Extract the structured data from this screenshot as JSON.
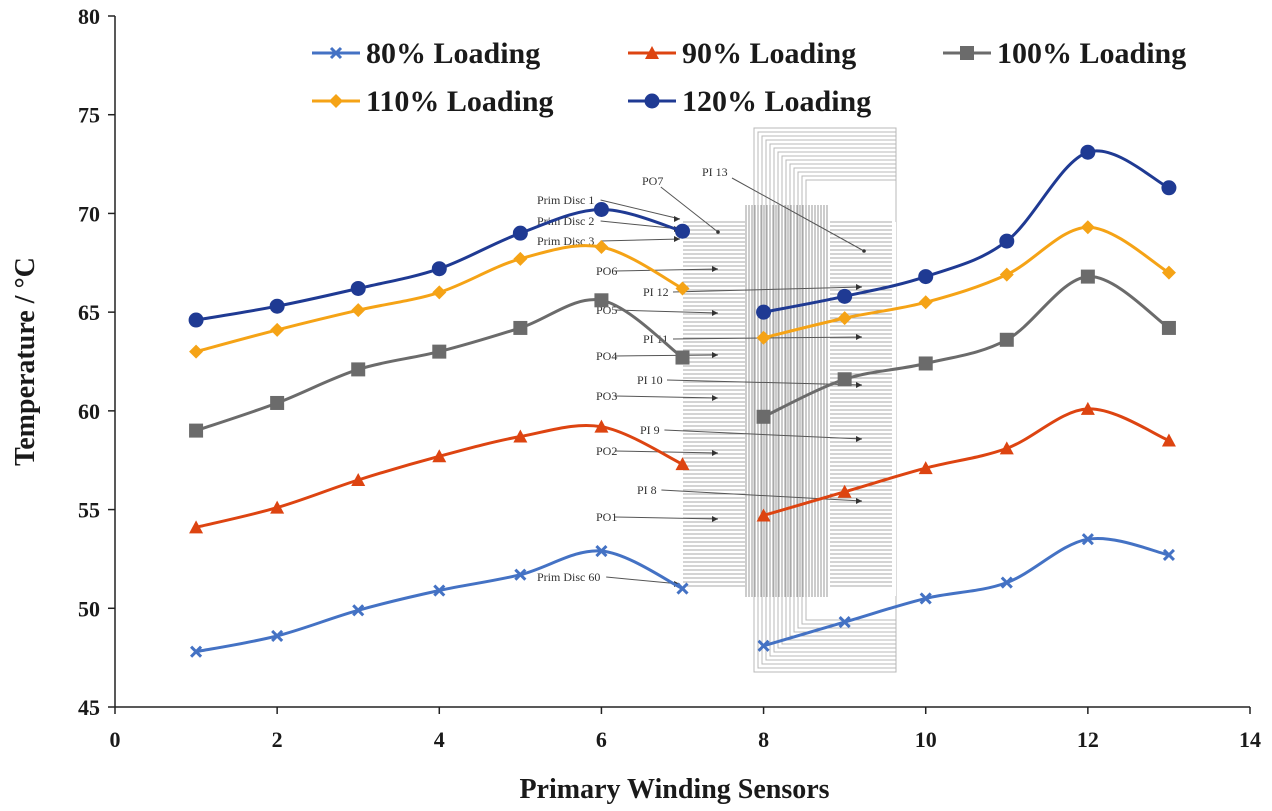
{
  "chart_data": {
    "type": "line",
    "xlabel": "Primary Winding Sensors",
    "ylabel": "Temperature / °C",
    "xlim": [
      0,
      14
    ],
    "ylim": [
      45,
      80
    ],
    "xticks": [
      0,
      2,
      4,
      6,
      8,
      10,
      12,
      14
    ],
    "yticks": [
      45,
      50,
      55,
      60,
      65,
      70,
      75,
      80
    ],
    "grid": false,
    "legend_position": "top",
    "series": [
      {
        "name": "80% Loading",
        "color": "#4472c4",
        "marker": "x",
        "x": [
          1,
          2,
          3,
          4,
          5,
          6,
          7,
          8,
          9,
          10,
          11,
          12,
          13
        ],
        "y": [
          47.8,
          48.6,
          49.9,
          50.9,
          51.7,
          52.9,
          51.0,
          48.1,
          49.3,
          50.5,
          51.3,
          53.5,
          52.7
        ]
      },
      {
        "name": "90% Loading",
        "color": "#dd4411",
        "marker": "triangle",
        "x": [
          1,
          2,
          3,
          4,
          5,
          6,
          7,
          8,
          9,
          10,
          11,
          12,
          13
        ],
        "y": [
          54.1,
          55.1,
          56.5,
          57.7,
          58.7,
          59.2,
          57.3,
          54.7,
          55.9,
          57.1,
          58.1,
          60.1,
          58.5
        ]
      },
      {
        "name": "100% Loading",
        "color": "#6b6b6b",
        "marker": "square",
        "x": [
          1,
          2,
          3,
          4,
          5,
          6,
          7,
          8,
          9,
          10,
          11,
          12,
          13
        ],
        "y": [
          59.0,
          60.4,
          62.1,
          63.0,
          64.2,
          65.6,
          62.7,
          59.7,
          61.6,
          62.4,
          63.6,
          66.8,
          64.2
        ]
      },
      {
        "name": "110% Loading",
        "color": "#f5a316",
        "marker": "diamond",
        "x": [
          1,
          2,
          3,
          4,
          5,
          6,
          7,
          8,
          9,
          10,
          11,
          12,
          13
        ],
        "y": [
          63.0,
          64.1,
          65.1,
          66.0,
          67.7,
          68.3,
          66.2,
          63.7,
          64.7,
          65.5,
          66.9,
          69.3,
          67.0
        ]
      },
      {
        "name": "120% Loading",
        "color": "#1f3a93",
        "marker": "circle",
        "x": [
          1,
          2,
          3,
          4,
          5,
          6,
          7,
          8,
          9,
          10,
          11,
          12,
          13
        ],
        "y": [
          64.6,
          65.3,
          66.2,
          67.2,
          69.0,
          70.2,
          69.1,
          65.0,
          65.8,
          66.8,
          68.6,
          73.1,
          71.3
        ]
      }
    ]
  },
  "inset_diagram": {
    "left_labels": [
      "Prim Disc 1",
      "Prim Disc 2",
      "Prim Disc 3",
      "PO6",
      "PO5",
      "PO4",
      "PO3",
      "PO2",
      "PO1",
      "Prim Disc 60"
    ],
    "top_labels": [
      "PO7",
      "PI 13"
    ],
    "inner_labels": [
      "PI 12",
      "PI 11",
      "PI 10",
      "PI 9",
      "PI 8"
    ]
  }
}
